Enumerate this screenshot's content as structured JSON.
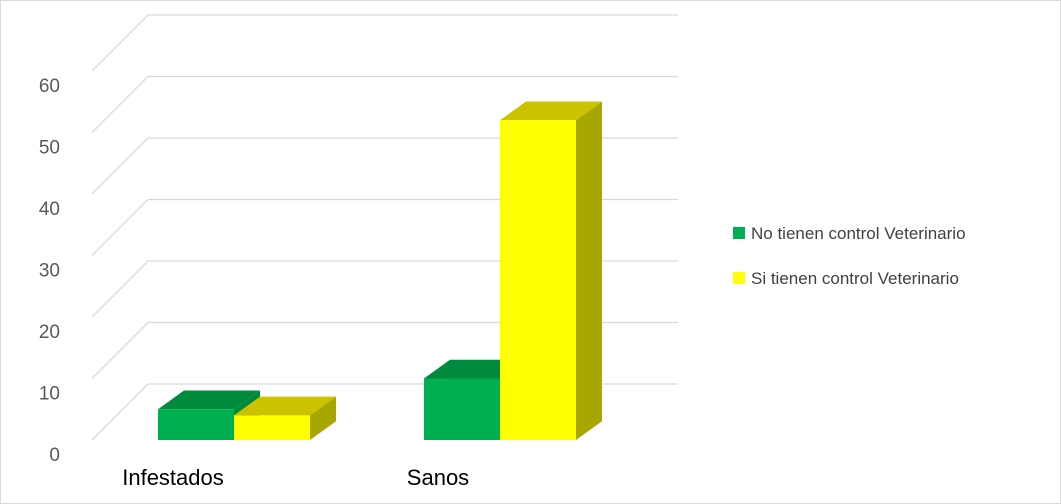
{
  "chart_data": {
    "type": "bar",
    "categories": [
      "Infestados",
      "Sanos"
    ],
    "series": [
      {
        "name": "No tienen control Veterinario",
        "values": [
          5,
          10
        ],
        "color": "#00B050",
        "top_color": "#008A3E",
        "side_color": "#008A3E"
      },
      {
        "name": "Si tienen control Veterinario",
        "values": [
          4,
          52
        ],
        "color": "#FFFF00",
        "top_color": "#CCC200",
        "side_color": "#A8A600"
      }
    ],
    "ylim": [
      0,
      60
    ],
    "yticks": [
      "0",
      "10",
      "20",
      "30",
      "40",
      "50",
      "60"
    ],
    "grid": true,
    "legend_position": "right",
    "title": "",
    "xlabel": "",
    "ylabel": ""
  }
}
